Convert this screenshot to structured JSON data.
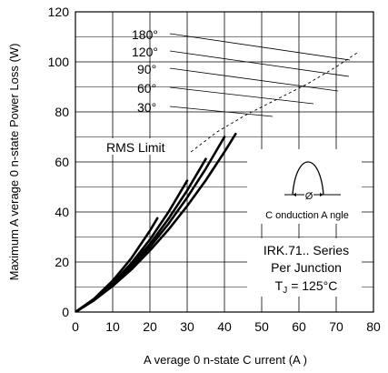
{
  "chart_data": {
    "type": "line",
    "title": "",
    "xlabel": "A verage 0 n-state C urrent (A )",
    "ylabel": "Maximum A verage 0 n-state Power Loss (W)",
    "xlim": [
      0,
      80
    ],
    "ylim": [
      0,
      120
    ],
    "x_ticks": [
      0,
      10,
      20,
      30,
      40,
      50,
      60,
      70,
      80
    ],
    "y_ticks": [
      0,
      20,
      40,
      60,
      80,
      100,
      120
    ],
    "grid": true,
    "series": [
      {
        "name": "180°",
        "x": [
          0,
          5,
          10,
          15,
          20,
          25,
          30,
          35,
          40,
          43
        ],
        "y": [
          0,
          4.7,
          10.4,
          17.0,
          24.6,
          33.0,
          42.4,
          52.7,
          64.0,
          71.2
        ]
      },
      {
        "name": "120°",
        "x": [
          0,
          5,
          10,
          15,
          20,
          25,
          30,
          35,
          40
        ],
        "y": [
          0,
          4.8,
          10.7,
          17.8,
          26.0,
          35.3,
          45.8,
          57.3,
          70.0
        ]
      },
      {
        "name": "90°",
        "x": [
          0,
          5,
          10,
          15,
          20,
          25,
          30,
          35
        ],
        "y": [
          0,
          4.9,
          11.0,
          18.5,
          27.2,
          37.3,
          48.6,
          61.2
        ]
      },
      {
        "name": "60°",
        "x": [
          0,
          5,
          10,
          15,
          20,
          25,
          30
        ],
        "y": [
          0,
          5.0,
          11.5,
          19.5,
          29.0,
          40.0,
          52.5
        ]
      },
      {
        "name": "30°",
        "x": [
          0,
          5,
          10,
          15,
          20,
          22
        ],
        "y": [
          0,
          5.3,
          12.5,
          21.5,
          32.5,
          37.5
        ]
      }
    ],
    "annotations": {
      "rms_limit": "RMS Limit",
      "conduction_angle": "C onduction A ngle",
      "phi": "Ø",
      "series_line_1": "IRK.71.. Series",
      "series_line_2": "Per Junction",
      "tj_prefix": "T",
      "tj_sub": "J",
      "tj_value": "= 125°C"
    }
  }
}
